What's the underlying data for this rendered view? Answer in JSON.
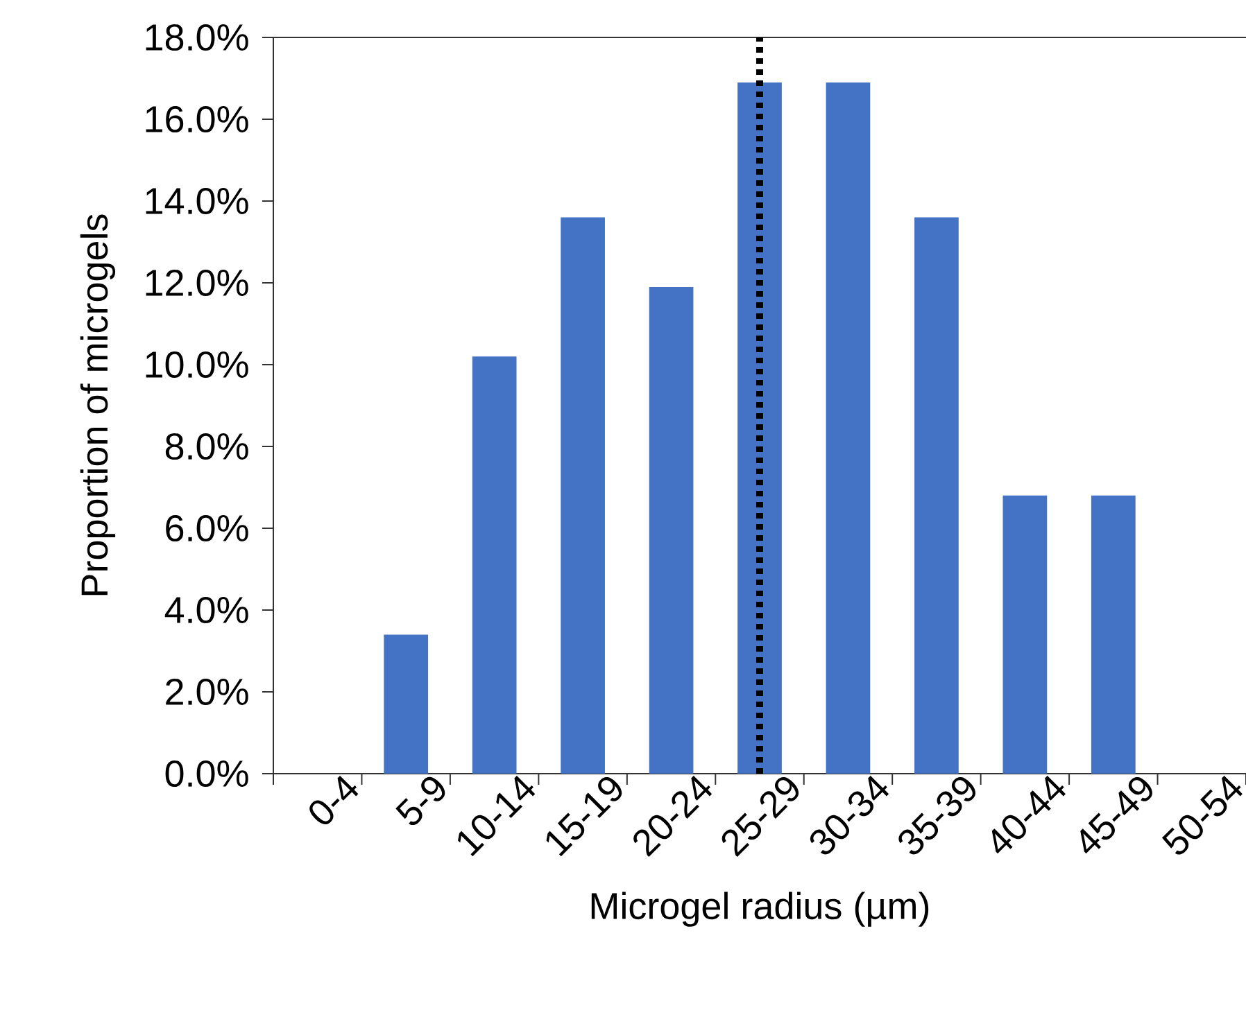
{
  "chart_data": {
    "type": "bar",
    "xlabel": "Microgel radius (µm)",
    "ylabel": "Proportion of microgels",
    "categories": [
      "0-4",
      "5-9",
      "10-14",
      "15-19",
      "20-24",
      "25-29",
      "30-34",
      "35-39",
      "40-44",
      "45-49",
      "50-54"
    ],
    "values": [
      0,
      3.4,
      10.2,
      13.6,
      11.9,
      16.9,
      16.9,
      13.6,
      6.8,
      6.8,
      0
    ],
    "color": "#4472c4",
    "ylim": [
      0,
      18
    ],
    "yticks": [
      {
        "value": 0,
        "label": "0.0%"
      },
      {
        "value": 2,
        "label": "2.0%"
      },
      {
        "value": 4,
        "label": "4.0%"
      },
      {
        "value": 6,
        "label": "6.0%"
      },
      {
        "value": 8,
        "label": "8.0%"
      },
      {
        "value": 10,
        "label": "10.0%"
      },
      {
        "value": 12,
        "label": "12.0%"
      },
      {
        "value": 14,
        "label": "14.0%"
      },
      {
        "value": 16,
        "label": "16.0%"
      },
      {
        "value": 18,
        "label": "18.0%"
      }
    ],
    "ref_lines": [
      {
        "axis": "x",
        "value": "25-29",
        "color": "#000000",
        "line_style": "dotted"
      }
    ],
    "grid": false
  }
}
